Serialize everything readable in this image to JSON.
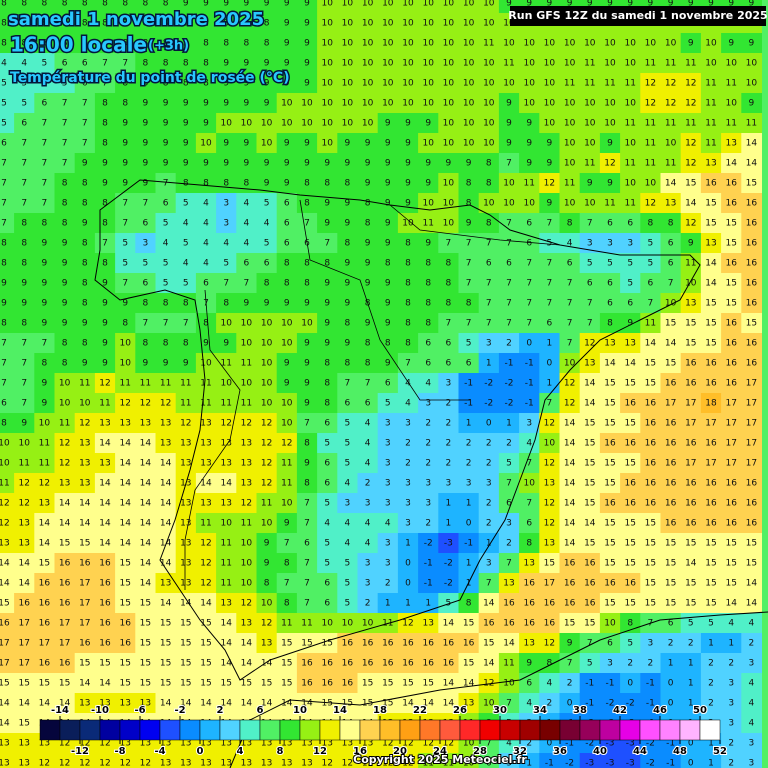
{
  "header": {
    "date": "samedi 1 novembre 2025",
    "time": "16:00 locale",
    "offset": "(+3h)",
    "variable": "Température du point de rosée (°C)",
    "run": "Run GFS 12Z du samedi 1 novembre 2025"
  },
  "footer": {
    "copyright": "Copyright 2025 Meteociel.fr"
  },
  "legend": {
    "bounds": [
      -16,
      -14,
      -12,
      -10,
      -8,
      -6,
      -4,
      -2,
      0,
      2,
      4,
      6,
      8,
      10,
      12,
      14,
      16,
      18,
      20,
      22,
      24,
      26,
      28,
      30,
      32,
      34,
      36,
      38,
      40,
      42,
      44,
      46,
      48,
      50,
      52
    ],
    "colors": [
      "#05053c",
      "#0a1e5a",
      "#0a2a78",
      "#0000a0",
      "#0000c8",
      "#0000f0",
      "#1e50ff",
      "#0a8cff",
      "#1eb4ff",
      "#50d2ff",
      "#50f0c8",
      "#50f064",
      "#32e632",
      "#96f014",
      "#f0f000",
      "#ffff8c",
      "#ffd250",
      "#ffbe28",
      "#ffa014",
      "#ff7828",
      "#ff5a3c",
      "#ff2828",
      "#f00000",
      "#c80000",
      "#a00000",
      "#780000",
      "#780032",
      "#96005a",
      "#be00a0",
      "#e600e6",
      "#ff50ff",
      "#ff82ff",
      "#ffb4ff",
      "#ffffff"
    ],
    "top_labels": [
      -14,
      -10,
      -6,
      -2,
      2,
      6,
      10,
      14,
      18,
      22,
      26,
      30,
      34,
      38,
      42,
      46,
      50
    ],
    "bottom_labels": [
      -12,
      -8,
      -4,
      0,
      4,
      8,
      12,
      16,
      20,
      24,
      28,
      32,
      36,
      40,
      44,
      48,
      52
    ]
  },
  "grid": {
    "rows": [
      [
        8,
        8,
        8,
        8,
        8,
        8,
        8,
        8,
        8,
        9,
        9,
        9,
        9,
        9,
        9,
        9,
        10,
        10,
        10,
        10,
        10,
        10,
        10,
        10,
        10,
        9,
        9,
        9,
        9,
        9,
        9,
        9,
        9,
        9,
        9,
        9,
        9,
        9
      ],
      [
        8,
        8,
        8,
        8,
        8,
        8,
        8,
        8,
        8,
        8,
        8,
        8,
        9,
        8,
        9,
        9,
        10,
        10,
        10,
        10,
        10,
        10,
        10,
        10,
        10,
        10,
        10,
        10,
        10,
        10,
        10,
        10,
        10,
        10,
        10,
        10,
        10,
        10
      ],
      [
        8,
        8,
        8,
        8,
        8,
        8,
        8,
        8,
        8,
        9,
        8,
        8,
        8,
        8,
        9,
        9,
        10,
        10,
        10,
        10,
        10,
        10,
        10,
        10,
        11,
        10,
        10,
        10,
        10,
        10,
        10,
        10,
        10,
        10,
        9,
        10,
        9,
        9
      ],
      [
        4,
        4,
        5,
        6,
        6,
        7,
        7,
        8,
        8,
        8,
        8,
        9,
        9,
        9,
        9,
        9,
        10,
        10,
        10,
        10,
        10,
        10,
        10,
        10,
        10,
        11,
        10,
        10,
        10,
        11,
        10,
        10,
        11,
        11,
        11,
        10,
        10,
        10
      ],
      [
        5,
        5,
        5,
        5,
        6,
        7,
        8,
        8,
        8,
        8,
        8,
        9,
        9,
        9,
        9,
        9,
        10,
        10,
        10,
        10,
        10,
        10,
        10,
        10,
        10,
        10,
        10,
        10,
        11,
        11,
        11,
        11,
        12,
        12,
        12,
        11,
        11,
        10
      ],
      [
        5,
        5,
        6,
        7,
        7,
        8,
        8,
        9,
        9,
        9,
        9,
        9,
        9,
        9,
        10,
        10,
        10,
        10,
        10,
        10,
        10,
        10,
        10,
        10,
        10,
        9,
        10,
        10,
        10,
        10,
        10,
        10,
        12,
        12,
        12,
        11,
        10,
        9
      ],
      [
        5,
        6,
        7,
        7,
        7,
        8,
        9,
        9,
        9,
        9,
        9,
        10,
        10,
        10,
        10,
        10,
        10,
        10,
        10,
        9,
        9,
        9,
        10,
        10,
        10,
        9,
        9,
        10,
        10,
        10,
        10,
        11,
        11,
        11,
        11,
        11,
        11,
        11
      ],
      [
        6,
        7,
        7,
        7,
        7,
        8,
        9,
        9,
        9,
        9,
        10,
        9,
        9,
        10,
        9,
        9,
        10,
        9,
        9,
        9,
        9,
        10,
        10,
        10,
        10,
        9,
        9,
        9,
        10,
        10,
        9,
        10,
        11,
        10,
        12,
        11,
        13,
        14
      ],
      [
        7,
        7,
        7,
        7,
        9,
        9,
        9,
        9,
        9,
        9,
        9,
        9,
        9,
        9,
        9,
        9,
        9,
        9,
        9,
        9,
        9,
        9,
        9,
        9,
        8,
        7,
        9,
        9,
        10,
        11,
        12,
        11,
        11,
        11,
        12,
        13,
        14,
        14
      ],
      [
        7,
        7,
        7,
        8,
        8,
        9,
        9,
        9,
        7,
        8,
        8,
        8,
        8,
        9,
        9,
        8,
        8,
        8,
        9,
        9,
        9,
        9,
        10,
        8,
        8,
        10,
        11,
        12,
        11,
        9,
        9,
        10,
        10,
        14,
        15,
        16,
        16,
        15
      ],
      [
        7,
        7,
        7,
        8,
        8,
        8,
        7,
        7,
        6,
        5,
        4,
        3,
        4,
        5,
        6,
        8,
        9,
        9,
        8,
        9,
        9,
        10,
        10,
        8,
        10,
        10,
        10,
        9,
        10,
        10,
        11,
        11,
        12,
        13,
        14,
        15,
        16,
        16
      ],
      [
        7,
        8,
        8,
        8,
        9,
        8,
        7,
        6,
        5,
        4,
        4,
        3,
        4,
        4,
        6,
        7,
        9,
        9,
        8,
        9,
        10,
        11,
        10,
        9,
        8,
        7,
        6,
        7,
        8,
        7,
        6,
        6,
        8,
        8,
        12,
        15,
        15,
        16
      ],
      [
        8,
        8,
        9,
        9,
        8,
        7,
        5,
        3,
        4,
        5,
        4,
        4,
        4,
        5,
        6,
        6,
        7,
        8,
        9,
        9,
        8,
        9,
        7,
        7,
        7,
        7,
        6,
        5,
        4,
        3,
        3,
        3,
        5,
        6,
        9,
        13,
        15,
        16
      ],
      [
        8,
        8,
        9,
        9,
        8,
        8,
        5,
        5,
        5,
        4,
        4,
        5,
        6,
        6,
        8,
        8,
        8,
        9,
        9,
        8,
        8,
        8,
        8,
        7,
        6,
        6,
        7,
        7,
        6,
        5,
        5,
        5,
        5,
        6,
        11,
        14,
        16,
        16
      ],
      [
        9,
        9,
        9,
        9,
        8,
        9,
        7,
        6,
        5,
        5,
        6,
        7,
        7,
        8,
        8,
        8,
        9,
        9,
        9,
        9,
        8,
        8,
        8,
        7,
        7,
        7,
        7,
        7,
        7,
        6,
        6,
        5,
        6,
        7,
        10,
        14,
        15,
        16
      ],
      [
        9,
        9,
        9,
        9,
        8,
        9,
        9,
        8,
        8,
        8,
        7,
        8,
        9,
        9,
        9,
        9,
        9,
        9,
        8,
        9,
        8,
        8,
        8,
        8,
        7,
        7,
        7,
        7,
        7,
        7,
        6,
        6,
        7,
        10,
        13,
        15,
        15,
        16
      ],
      [
        8,
        8,
        9,
        9,
        9,
        9,
        8,
        7,
        7,
        7,
        8,
        10,
        10,
        10,
        10,
        10,
        9,
        8,
        9,
        9,
        8,
        8,
        7,
        7,
        7,
        7,
        7,
        6,
        7,
        7,
        8,
        9,
        11,
        15,
        15,
        15,
        16,
        15
      ],
      [
        7,
        7,
        7,
        8,
        8,
        9,
        10,
        8,
        8,
        8,
        9,
        9,
        10,
        10,
        10,
        9,
        9,
        9,
        8,
        8,
        8,
        6,
        6,
        5,
        3,
        2,
        0,
        1,
        7,
        12,
        13,
        13,
        14,
        14,
        15,
        15,
        16,
        16
      ],
      [
        7,
        7,
        8,
        8,
        9,
        9,
        10,
        9,
        9,
        9,
        10,
        11,
        11,
        10,
        9,
        9,
        8,
        8,
        8,
        9,
        7,
        6,
        6,
        6,
        1,
        -1,
        -1,
        0,
        10,
        13,
        14,
        14,
        15,
        15,
        16,
        16,
        16,
        16
      ],
      [
        7,
        7,
        9,
        10,
        11,
        12,
        11,
        11,
        11,
        11,
        11,
        10,
        10,
        10,
        9,
        9,
        8,
        7,
        7,
        6,
        4,
        4,
        3,
        -1,
        -2,
        -2,
        -1,
        1,
        12,
        14,
        15,
        15,
        15,
        16,
        16,
        16,
        16,
        17
      ],
      [
        6,
        7,
        9,
        10,
        10,
        11,
        12,
        12,
        12,
        11,
        11,
        11,
        11,
        10,
        10,
        9,
        8,
        6,
        6,
        5,
        4,
        3,
        2,
        -1,
        -2,
        -2,
        -1,
        7,
        12,
        14,
        15,
        16,
        16,
        17,
        17,
        18,
        17,
        17
      ],
      [
        8,
        9,
        10,
        11,
        12,
        13,
        13,
        13,
        13,
        12,
        13,
        12,
        12,
        12,
        10,
        7,
        6,
        5,
        4,
        3,
        3,
        2,
        2,
        1,
        0,
        1,
        3,
        12,
        14,
        15,
        15,
        15,
        16,
        16,
        17,
        17,
        17,
        17
      ],
      [
        10,
        10,
        11,
        12,
        13,
        14,
        14,
        14,
        13,
        13,
        13,
        13,
        13,
        12,
        12,
        8,
        5,
        5,
        4,
        3,
        2,
        2,
        2,
        2,
        2,
        2,
        4,
        10,
        14,
        15,
        16,
        16,
        16,
        16,
        16,
        16,
        17,
        17
      ],
      [
        10,
        11,
        11,
        12,
        13,
        13,
        14,
        14,
        14,
        13,
        13,
        13,
        13,
        12,
        11,
        9,
        6,
        5,
        4,
        3,
        2,
        2,
        2,
        2,
        2,
        5,
        7,
        12,
        14,
        15,
        15,
        15,
        16,
        16,
        17,
        17,
        17,
        17
      ],
      [
        11,
        12,
        12,
        13,
        13,
        14,
        14,
        14,
        14,
        13,
        14,
        14,
        13,
        12,
        11,
        8,
        6,
        4,
        2,
        3,
        3,
        3,
        3,
        3,
        3,
        7,
        10,
        13,
        14,
        15,
        15,
        16,
        16,
        16,
        16,
        16,
        16,
        16
      ],
      [
        12,
        12,
        13,
        14,
        14,
        14,
        14,
        14,
        14,
        13,
        13,
        13,
        12,
        11,
        10,
        7,
        5,
        3,
        3,
        3,
        3,
        3,
        1,
        1,
        2,
        6,
        7,
        12,
        14,
        15,
        16,
        16,
        16,
        16,
        16,
        16,
        16,
        16
      ],
      [
        12,
        13,
        14,
        14,
        14,
        14,
        14,
        14,
        14,
        13,
        11,
        10,
        11,
        10,
        9,
        7,
        4,
        4,
        4,
        4,
        3,
        2,
        1,
        0,
        2,
        3,
        6,
        12,
        14,
        14,
        15,
        15,
        15,
        16,
        16,
        16,
        16,
        16
      ],
      [
        13,
        13,
        14,
        15,
        15,
        14,
        14,
        14,
        14,
        13,
        12,
        11,
        10,
        9,
        7,
        6,
        5,
        4,
        4,
        3,
        1,
        -2,
        -3,
        -1,
        1,
        2,
        8,
        13,
        14,
        15,
        15,
        15,
        15,
        15,
        15,
        15,
        15,
        15
      ],
      [
        14,
        14,
        15,
        16,
        16,
        16,
        15,
        14,
        14,
        13,
        12,
        11,
        10,
        9,
        8,
        7,
        5,
        5,
        3,
        3,
        0,
        -1,
        -2,
        1,
        3,
        7,
        13,
        15,
        16,
        16,
        15,
        15,
        15,
        15,
        14,
        15,
        15,
        15
      ],
      [
        14,
        14,
        16,
        16,
        17,
        16,
        15,
        14,
        13,
        13,
        12,
        11,
        10,
        8,
        7,
        7,
        6,
        5,
        3,
        2,
        0,
        -1,
        -2,
        1,
        7,
        13,
        16,
        17,
        16,
        16,
        16,
        16,
        15,
        15,
        15,
        15,
        15,
        14
      ],
      [
        15,
        16,
        16,
        16,
        17,
        16,
        15,
        15,
        14,
        14,
        14,
        13,
        12,
        10,
        8,
        7,
        6,
        5,
        2,
        1,
        1,
        1,
        5,
        8,
        14,
        16,
        16,
        16,
        16,
        16,
        15,
        15,
        15,
        15,
        15,
        15,
        14,
        14
      ],
      [
        16,
        17,
        16,
        17,
        17,
        16,
        16,
        15,
        15,
        15,
        15,
        14,
        13,
        12,
        11,
        11,
        10,
        10,
        10,
        11,
        12,
        13,
        14,
        15,
        16,
        16,
        16,
        16,
        15,
        15,
        10,
        8,
        7,
        6,
        5,
        5,
        4,
        4
      ],
      [
        17,
        17,
        17,
        17,
        16,
        16,
        16,
        15,
        15,
        15,
        15,
        14,
        14,
        13,
        15,
        15,
        15,
        16,
        16,
        16,
        16,
        16,
        16,
        16,
        15,
        14,
        13,
        12,
        9,
        7,
        6,
        5,
        3,
        2,
        2,
        1,
        1,
        2
      ],
      [
        17,
        17,
        16,
        16,
        15,
        15,
        15,
        15,
        15,
        15,
        15,
        14,
        14,
        14,
        15,
        16,
        16,
        16,
        16,
        16,
        16,
        16,
        16,
        15,
        14,
        11,
        9,
        8,
        7,
        5,
        3,
        2,
        2,
        1,
        1,
        2,
        2,
        3
      ],
      [
        15,
        15,
        15,
        15,
        14,
        14,
        15,
        15,
        15,
        15,
        15,
        15,
        15,
        15,
        15,
        16,
        16,
        16,
        15,
        15,
        15,
        15,
        14,
        14,
        12,
        10,
        6,
        4,
        2,
        -1,
        -1,
        0,
        -1,
        0,
        1,
        2,
        3,
        4
      ],
      [
        14,
        14,
        14,
        14,
        13,
        13,
        13,
        13,
        14,
        14,
        14,
        14,
        14,
        14,
        14,
        14,
        15,
        15,
        15,
        15,
        14,
        14,
        14,
        13,
        10,
        7,
        4,
        2,
        0,
        -1,
        -2,
        -2,
        -1,
        0,
        1,
        2,
        3,
        4
      ],
      [
        14,
        15,
        14,
        14,
        14,
        14,
        14,
        14,
        14,
        14,
        14,
        14,
        14,
        14,
        14,
        14,
        14,
        14,
        14,
        13,
        13,
        13,
        13,
        11,
        8,
        5,
        3,
        1,
        -1,
        -2,
        -2,
        -2,
        -1,
        0,
        1,
        2,
        3,
        4
      ],
      [
        13,
        13,
        13,
        12,
        12,
        12,
        13,
        13,
        13,
        13,
        13,
        13,
        13,
        13,
        13,
        13,
        13,
        13,
        13,
        12,
        12,
        12,
        12,
        10,
        7,
        4,
        2,
        0,
        -1,
        -2,
        -3,
        -3,
        -2,
        -1,
        0,
        1,
        2,
        3
      ],
      [
        13,
        13,
        12,
        12,
        12,
        12,
        12,
        12,
        13,
        13,
        13,
        13,
        13,
        13,
        13,
        13,
        12,
        12,
        12,
        12,
        12,
        11,
        11,
        10,
        6,
        3,
        1,
        -1,
        -2,
        -3,
        -3,
        -3,
        -2,
        -1,
        0,
        1,
        2,
        3
      ]
    ]
  }
}
